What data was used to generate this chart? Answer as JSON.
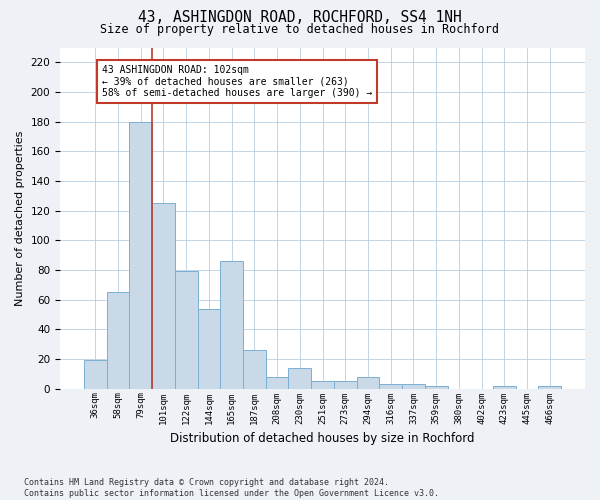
{
  "title": "43, ASHINGDON ROAD, ROCHFORD, SS4 1NH",
  "subtitle": "Size of property relative to detached houses in Rochford",
  "xlabel": "Distribution of detached houses by size in Rochford",
  "ylabel": "Number of detached properties",
  "categories": [
    "36sqm",
    "58sqm",
    "79sqm",
    "101sqm",
    "122sqm",
    "144sqm",
    "165sqm",
    "187sqm",
    "208sqm",
    "230sqm",
    "251sqm",
    "273sqm",
    "294sqm",
    "316sqm",
    "337sqm",
    "359sqm",
    "380sqm",
    "402sqm",
    "423sqm",
    "445sqm",
    "466sqm"
  ],
  "values": [
    19,
    65,
    180,
    125,
    79,
    54,
    86,
    26,
    8,
    14,
    5,
    5,
    8,
    3,
    3,
    2,
    0,
    0,
    2,
    0,
    2
  ],
  "bar_color": "#c9d9e8",
  "bar_edge_color": "#7bafd4",
  "vline_color": "#c0392b",
  "annotation_text": "43 ASHINGDON ROAD: 102sqm\n← 39% of detached houses are smaller (263)\n58% of semi-detached houses are larger (390) →",
  "annotation_box_color": "#c0392b",
  "ylim": [
    0,
    230
  ],
  "yticks": [
    0,
    20,
    40,
    60,
    80,
    100,
    120,
    140,
    160,
    180,
    200,
    220
  ],
  "footnote": "Contains HM Land Registry data © Crown copyright and database right 2024.\nContains public sector information licensed under the Open Government Licence v3.0.",
  "background_color": "#eef2f7",
  "plot_background": "#ffffff"
}
